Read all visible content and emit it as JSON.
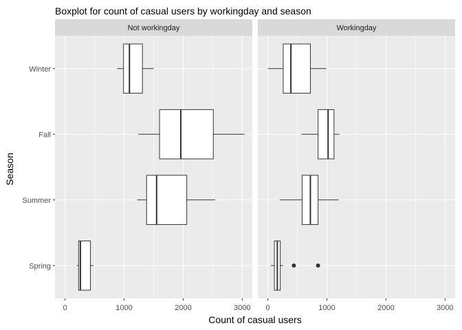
{
  "chart_data": {
    "type": "boxplot",
    "orientation": "horizontal",
    "title": "Boxplot for count of casual users by workingday and season",
    "xlabel": "Count of casual users",
    "ylabel": "Season",
    "xlim": [
      -170,
      3170
    ],
    "x_ticks": [
      0,
      1000,
      2000,
      3000
    ],
    "x_minor_ticks": [
      500,
      1500,
      2500
    ],
    "categories": [
      "Winter",
      "Fall",
      "Summer",
      "Spring"
    ],
    "grid": true,
    "panel_background": "#ebebeb",
    "strip_background": "#d9d9d9",
    "box_fill": "#ffffff",
    "box_stroke": "#333333",
    "facets": [
      {
        "label": "Not workingday",
        "boxes": [
          {
            "category": "Winter",
            "min": 880,
            "q1": 990,
            "median": 1090,
            "q3": 1310,
            "max": 1500,
            "outliers": []
          },
          {
            "category": "Fall",
            "min": 1240,
            "q1": 1600,
            "median": 1960,
            "q3": 2510,
            "max": 3040,
            "outliers": []
          },
          {
            "category": "Summer",
            "min": 1220,
            "q1": 1380,
            "median": 1550,
            "q3": 2060,
            "max": 2540,
            "outliers": []
          },
          {
            "category": "Spring",
            "min": 200,
            "q1": 230,
            "median": 260,
            "q3": 430,
            "max": 480,
            "outliers": []
          }
        ]
      },
      {
        "label": "Workingday",
        "boxes": [
          {
            "category": "Winter",
            "min": 0,
            "q1": 260,
            "median": 390,
            "q3": 720,
            "max": 990,
            "outliers": []
          },
          {
            "category": "Fall",
            "min": 570,
            "q1": 850,
            "median": 1020,
            "q3": 1120,
            "max": 1210,
            "outliers": []
          },
          {
            "category": "Summer",
            "min": 200,
            "q1": 580,
            "median": 720,
            "q3": 850,
            "max": 1200,
            "outliers": []
          },
          {
            "category": "Spring",
            "min": 50,
            "q1": 110,
            "median": 160,
            "q3": 210,
            "max": 260,
            "outliers": [
              440,
              850
            ]
          }
        ]
      }
    ]
  }
}
